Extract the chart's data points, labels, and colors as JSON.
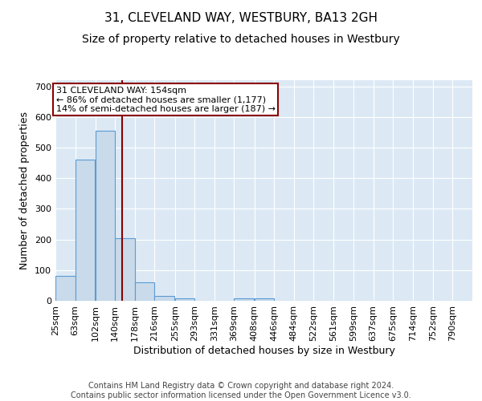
{
  "title": "31, CLEVELAND WAY, WESTBURY, BA13 2GH",
  "subtitle": "Size of property relative to detached houses in Westbury",
  "xlabel": "Distribution of detached houses by size in Westbury",
  "ylabel": "Number of detached properties",
  "bin_labels": [
    "25sqm",
    "63sqm",
    "102sqm",
    "140sqm",
    "178sqm",
    "216sqm",
    "255sqm",
    "293sqm",
    "331sqm",
    "369sqm",
    "408sqm",
    "446sqm",
    "484sqm",
    "522sqm",
    "561sqm",
    "599sqm",
    "637sqm",
    "675sqm",
    "714sqm",
    "752sqm",
    "790sqm"
  ],
  "bar_heights": [
    80,
    462,
    554,
    205,
    60,
    17,
    8,
    0,
    0,
    8,
    8,
    0,
    0,
    0,
    0,
    0,
    0,
    0,
    0,
    0,
    0
  ],
  "bar_color": "#c9daea",
  "bar_edge_color": "#5b9bd5",
  "plot_bg_color": "#dce9f5",
  "vline_x": 154,
  "vline_color": "#8b0000",
  "bin_edges": [
    25,
    63,
    102,
    140,
    178,
    216,
    255,
    293,
    331,
    369,
    408,
    446,
    484,
    522,
    561,
    599,
    637,
    675,
    714,
    752,
    790
  ],
  "bin_width": 38,
  "annotation_text": "31 CLEVELAND WAY: 154sqm\n← 86% of detached houses are smaller (1,177)\n14% of semi-detached houses are larger (187) →",
  "ylim": [
    0,
    720
  ],
  "yticks": [
    0,
    100,
    200,
    300,
    400,
    500,
    600,
    700
  ],
  "footer_text": "Contains HM Land Registry data © Crown copyright and database right 2024.\nContains public sector information licensed under the Open Government Licence v3.0.",
  "title_fontsize": 11,
  "subtitle_fontsize": 10,
  "xlabel_fontsize": 9,
  "ylabel_fontsize": 9,
  "tick_fontsize": 8,
  "footer_fontsize": 7,
  "ann_fontsize": 8
}
